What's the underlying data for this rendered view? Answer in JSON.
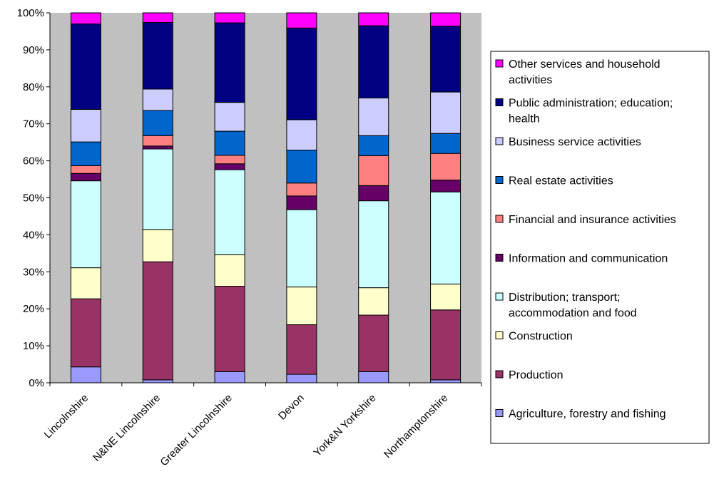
{
  "chart_data": {
    "type": "bar",
    "stacked": true,
    "percent": true,
    "categories": [
      "Lincolnshire",
      "N&NE Lincolnshire",
      "Greater Lincolnshire",
      "Devon",
      "York&N Yorkshire",
      "Northamptonshire"
    ],
    "ylim": [
      0,
      100
    ],
    "yticks": [
      "0%",
      "10%",
      "20%",
      "30%",
      "40%",
      "50%",
      "60%",
      "70%",
      "80%",
      "90%",
      "100%"
    ],
    "grid": false,
    "legend_position": "right",
    "plot_background": "#c0c0c0",
    "series": [
      {
        "name": "Agriculture, forestry and fishing",
        "legend_lines": [
          "Agriculture, forestry and fishing"
        ],
        "color": "#9999ff",
        "values": [
          4.3,
          0.8,
          3.0,
          2.3,
          3.0,
          0.8
        ]
      },
      {
        "name": "Production",
        "legend_lines": [
          "Production"
        ],
        "color": "#993366",
        "values": [
          18.4,
          31.9,
          23.1,
          13.4,
          15.3,
          18.9
        ]
      },
      {
        "name": "Construction",
        "legend_lines": [
          "Construction"
        ],
        "color": "#ffffcc",
        "values": [
          8.4,
          8.7,
          8.5,
          10.2,
          7.4,
          7.0
        ]
      },
      {
        "name": "Distribution; transport; accommodation and food",
        "legend_lines": [
          "Distribution; transport;",
          "accommodation and food"
        ],
        "color": "#ccffff",
        "values": [
          23.5,
          21.8,
          23.0,
          20.9,
          23.5,
          24.9
        ]
      },
      {
        "name": "Information and communication",
        "legend_lines": [
          "Information and communication"
        ],
        "color": "#660066",
        "values": [
          2.0,
          0.8,
          1.6,
          3.7,
          4.1,
          3.2
        ]
      },
      {
        "name": "Financial and insurance activities",
        "legend_lines": [
          "Financial and insurance activities"
        ],
        "color": "#ff8080",
        "values": [
          2.1,
          2.8,
          2.3,
          3.5,
          8.1,
          7.2
        ]
      },
      {
        "name": "Real estate activities",
        "legend_lines": [
          "Real estate activities"
        ],
        "color": "#0066cc",
        "values": [
          6.4,
          6.8,
          6.5,
          8.9,
          5.4,
          5.4
        ]
      },
      {
        "name": "Business service activities",
        "legend_lines": [
          "Business service activities"
        ],
        "color": "#ccccff",
        "values": [
          8.8,
          5.8,
          7.8,
          8.2,
          10.2,
          11.2
        ]
      },
      {
        "name": "Public administration; education; health",
        "legend_lines": [
          "Public administration; education;",
          "health"
        ],
        "color": "#000080",
        "values": [
          23.1,
          18.0,
          21.5,
          24.8,
          19.5,
          17.8
        ]
      },
      {
        "name": "Other services and household activities",
        "legend_lines": [
          "Other services and household",
          "activities"
        ],
        "color": "#ff00ff",
        "values": [
          3.0,
          2.6,
          2.7,
          4.1,
          3.5,
          3.6
        ]
      }
    ]
  }
}
